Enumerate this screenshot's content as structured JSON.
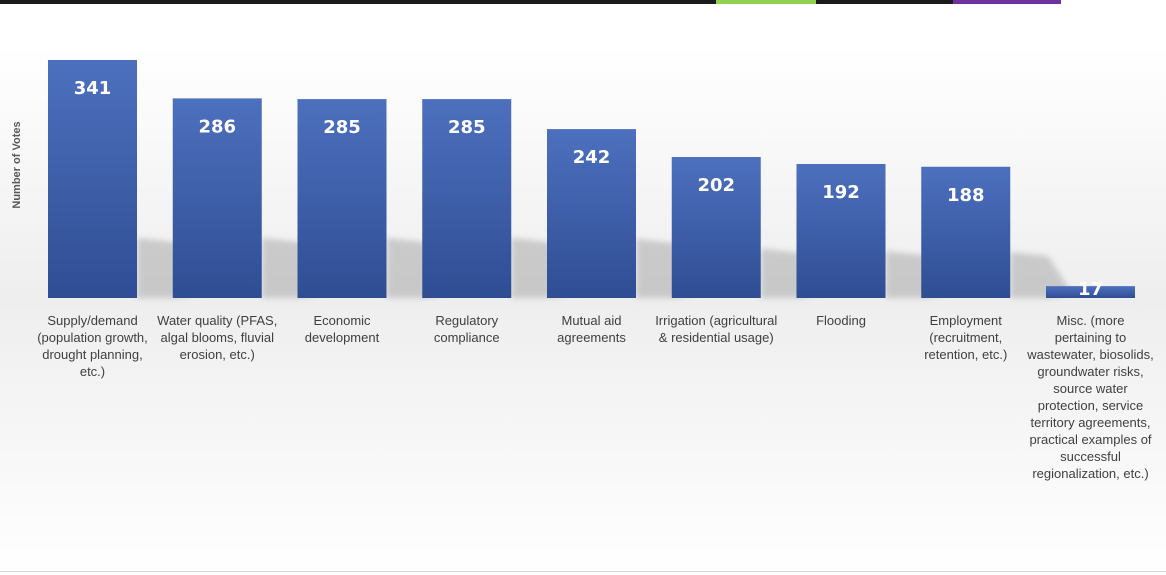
{
  "chart_data": {
    "type": "bar",
    "ylabel": "Number of Votes",
    "categories": [
      "Supply/demand (population growth, drought planning, etc.)",
      "Water quality (PFAS, algal blooms, fluvial erosion, etc.)",
      "Economic development",
      "Regulatory compliance",
      "Mutual aid agreements",
      "Irrigation (agricultural & residential usage)",
      "Flooding",
      "Employment (recruitment, retention, etc.)",
      "Misc. (more pertaining to wastewater, biosolids, groundwater risks, source water protection, service territory agreements, practical examples of successful regionalization, etc.)"
    ],
    "values": [
      341,
      286,
      285,
      285,
      242,
      202,
      192,
      188,
      17
    ],
    "ylim": [
      0,
      341
    ],
    "grid": false,
    "legend": "none",
    "colors": {
      "bar_top": "#4d70be",
      "bar_bottom": "#2f4d93",
      "value_label": "#ffffff",
      "shadow": "#aaaaaa"
    }
  },
  "top_strip": [
    {
      "color": "#1b1b1b"
    },
    {
      "color": "#92d050"
    },
    {
      "color": "#1b1b1b"
    },
    {
      "color": "#7030a0"
    }
  ]
}
